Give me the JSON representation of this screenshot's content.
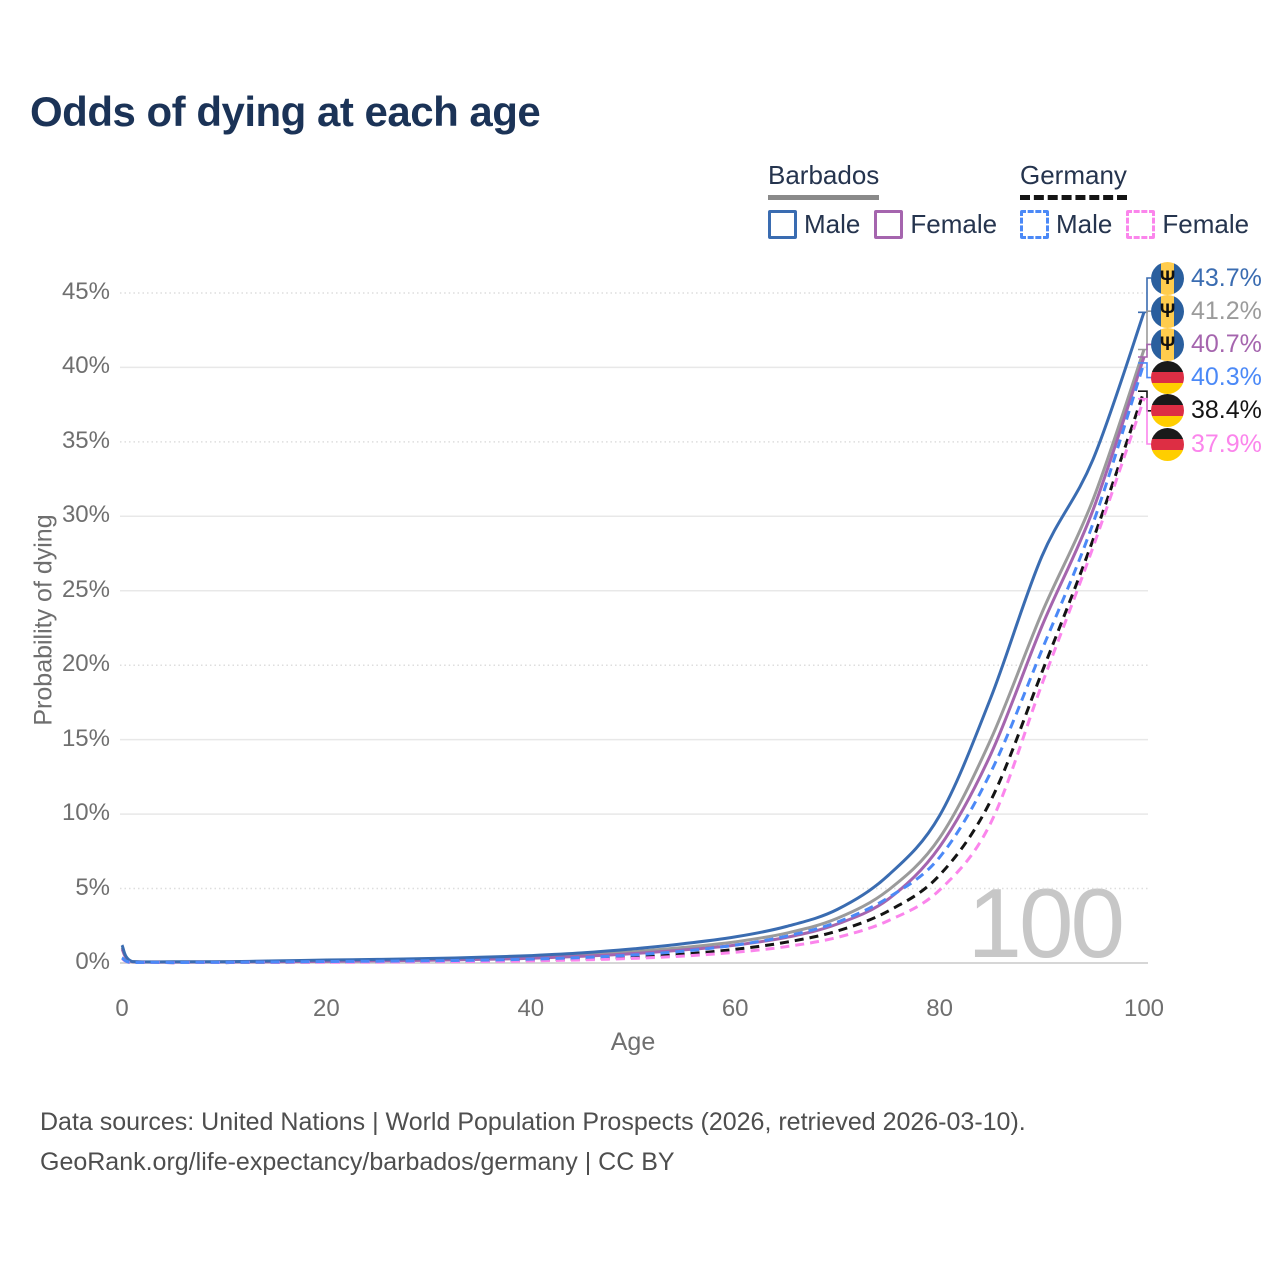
{
  "chart_data": {
    "type": "line",
    "title": "Odds of dying at each age",
    "xlabel": "Age",
    "ylabel": "Probability of dying",
    "xlim": [
      0,
      100
    ],
    "ylim": [
      0,
      45
    ],
    "grid": "horizontal",
    "x_ticks": [
      "0",
      "20",
      "40",
      "60",
      "80",
      "100"
    ],
    "y_ticks": [
      "0%",
      "5%",
      "10%",
      "15%",
      "20%",
      "25%",
      "30%",
      "35%",
      "40%",
      "45%"
    ],
    "ages": [
      0,
      1,
      5,
      10,
      15,
      20,
      25,
      30,
      35,
      40,
      45,
      50,
      55,
      60,
      65,
      70,
      75,
      80,
      85,
      90,
      95,
      100
    ],
    "series": [
      {
        "id": "barbados-both",
        "name": "Barbados Both sexes",
        "color": "#9b9b9b",
        "dash": false,
        "values": [
          1.05,
          0.09,
          0.07,
          0.08,
          0.11,
          0.15,
          0.18,
          0.23,
          0.3,
          0.4,
          0.55,
          0.76,
          1.05,
          1.42,
          2.0,
          3.0,
          4.9,
          8.4,
          15.0,
          23.5,
          31.1,
          41.2
        ]
      },
      {
        "id": "barbados-female",
        "name": "Barbados Female",
        "color": "#a565ae",
        "dash": false,
        "values": [
          0.95,
          0.08,
          0.06,
          0.07,
          0.09,
          0.11,
          0.14,
          0.18,
          0.24,
          0.32,
          0.45,
          0.63,
          0.88,
          1.2,
          1.72,
          2.62,
          4.3,
          7.8,
          14.0,
          22.6,
          30.4,
          40.7
        ]
      },
      {
        "id": "barbados-male",
        "name": "Barbados Male",
        "color": "#3a6cb1",
        "dash": false,
        "values": [
          1.2,
          0.1,
          0.08,
          0.09,
          0.14,
          0.2,
          0.24,
          0.3,
          0.38,
          0.5,
          0.68,
          0.95,
          1.3,
          1.75,
          2.45,
          3.6,
          5.9,
          9.9,
          17.8,
          27.3,
          33.8,
          43.7
        ]
      },
      {
        "id": "germany-both",
        "name": "Germany Both sexes",
        "color": "#141414",
        "dash": true,
        "values": [
          0.32,
          0.03,
          0.03,
          0.03,
          0.05,
          0.07,
          0.09,
          0.11,
          0.14,
          0.19,
          0.27,
          0.4,
          0.6,
          0.92,
          1.4,
          2.15,
          3.5,
          5.9,
          10.9,
          19.5,
          28.4,
          38.4
        ]
      },
      {
        "id": "germany-female",
        "name": "Germany Female",
        "color": "#fb85ec",
        "dash": true,
        "values": [
          0.3,
          0.03,
          0.02,
          0.03,
          0.04,
          0.05,
          0.06,
          0.08,
          0.1,
          0.14,
          0.21,
          0.31,
          0.47,
          0.72,
          1.1,
          1.72,
          2.85,
          4.9,
          9.4,
          18.7,
          27.9,
          37.9
        ]
      },
      {
        "id": "germany-male",
        "name": "Germany Male",
        "color": "#4b89f7",
        "dash": true,
        "values": [
          0.35,
          0.03,
          0.03,
          0.04,
          0.07,
          0.1,
          0.12,
          0.15,
          0.19,
          0.26,
          0.37,
          0.54,
          0.8,
          1.2,
          1.8,
          2.75,
          4.4,
          7.1,
          12.8,
          21.0,
          29.5,
          40.3
        ]
      }
    ],
    "end_labels": [
      {
        "label": "43.7%",
        "value": 43.7,
        "color": "#3a6cb1",
        "flag": "barbados"
      },
      {
        "label": "41.2%",
        "value": 41.2,
        "color": "#9b9b9b",
        "flag": "barbados"
      },
      {
        "label": "40.7%",
        "value": 40.7,
        "color": "#a565ae",
        "flag": "barbados"
      },
      {
        "label": "40.3%",
        "value": 40.3,
        "color": "#4b89f7",
        "flag": "germany"
      },
      {
        "label": "38.4%",
        "value": 38.4,
        "color": "#141414",
        "flag": "germany"
      },
      {
        "label": "37.9%",
        "value": 37.9,
        "color": "#fb85ec",
        "flag": "germany"
      }
    ],
    "watermark": "100",
    "legend_position": "top-right"
  },
  "legend": {
    "groups": [
      {
        "country": "Barbados",
        "underline_color": "#8a8a8a",
        "underline_style": "solid",
        "items": [
          {
            "label": "Male",
            "color": "#3a6cb1",
            "dash": false
          },
          {
            "label": "Female",
            "color": "#a565ae",
            "dash": false
          }
        ]
      },
      {
        "country": "Germany",
        "underline_color": "#141414",
        "underline_style": "dashed",
        "items": [
          {
            "label": "Male",
            "color": "#4b89f7",
            "dash": true
          },
          {
            "label": "Female",
            "color": "#fb85ec",
            "dash": true
          }
        ]
      }
    ]
  },
  "flags": {
    "barbados": {
      "blue": "#2a5f9e",
      "yellow": "#ffcc4d",
      "trident_glyph": "Ψ"
    },
    "germany": {
      "black": "#1a1a1a",
      "red": "#dd2e44",
      "gold": "#ffce00"
    }
  },
  "footer": {
    "line1": "Data sources: United Nations | World Population Prospects (2026, retrieved 2026-03-10).",
    "line2": "GeoRank.org/life-expectancy/barbados/germany | CC BY"
  }
}
